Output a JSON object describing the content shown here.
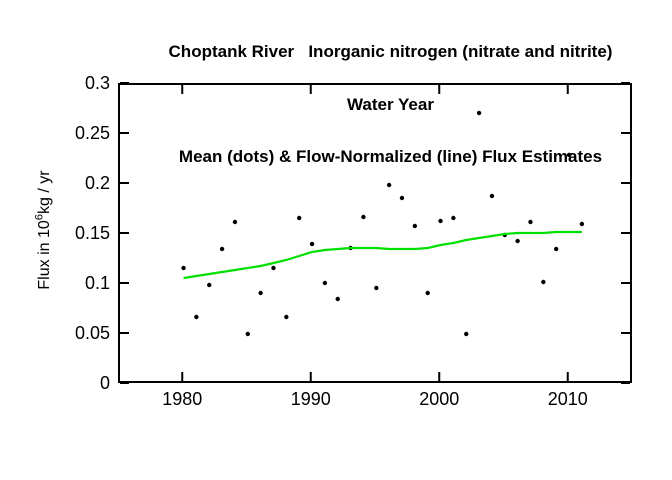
{
  "title": {
    "line1": "Choptank River   Inorganic nitrogen (nitrate and nitrite)",
    "line2": "Water Year",
    "line3": "Mean (dots) & Flow-Normalized (line) Flux Estimates"
  },
  "y_axis_title": {
    "prefix": "Flux in 10",
    "exponent": "6",
    "suffix": "kg / yr"
  },
  "chart_data": {
    "type": "scatter",
    "title": "Choptank River Inorganic nitrogen (nitrate and nitrite), Water Year, Mean (dots) & Flow-Normalized (line) Flux Estimates",
    "xlabel": "",
    "ylabel": "Flux in 10^6 kg/yr",
    "xlim": [
      1975,
      2015
    ],
    "ylim": [
      0,
      0.3
    ],
    "xticks": [
      1980,
      1990,
      2000,
      2010
    ],
    "xtick_labels": [
      "1980",
      "1990",
      "2000",
      "2010"
    ],
    "yticks": [
      0,
      0.05,
      0.1,
      0.15,
      0.2,
      0.25,
      0.3
    ],
    "ytick_labels": [
      "0",
      "0.05",
      "0.1",
      "0.15",
      "0.2",
      "0.25",
      "0.3"
    ],
    "grid": false,
    "legend": "none",
    "colors": {
      "dots": "#000000",
      "line": "#00E000",
      "axis": "#000000"
    },
    "x": [
      1980,
      1981,
      1982,
      1983,
      1984,
      1985,
      1986,
      1987,
      1988,
      1989,
      1990,
      1991,
      1992,
      1993,
      1994,
      1995,
      1996,
      1997,
      1998,
      1999,
      2000,
      2001,
      2002,
      2003,
      2004,
      2005,
      2006,
      2007,
      2008,
      2009,
      2010,
      2011
    ],
    "series": [
      {
        "name": "Mean (dots)",
        "style": "scatter",
        "values": [
          0.115,
          0.066,
          0.098,
          0.134,
          0.161,
          0.049,
          0.09,
          0.115,
          0.066,
          0.165,
          0.139,
          0.1,
          0.084,
          0.135,
          0.166,
          0.095,
          0.198,
          0.185,
          0.157,
          0.09,
          0.162,
          0.165,
          0.049,
          0.27,
          0.187,
          0.148,
          0.142,
          0.161,
          0.101,
          0.134,
          0.228,
          0.159
        ]
      },
      {
        "name": "Flow-Normalized (line)",
        "style": "line",
        "values": [
          0.105,
          0.107,
          0.109,
          0.111,
          0.113,
          0.115,
          0.117,
          0.12,
          0.123,
          0.127,
          0.131,
          0.133,
          0.134,
          0.135,
          0.135,
          0.135,
          0.134,
          0.134,
          0.134,
          0.135,
          0.138,
          0.14,
          0.143,
          0.145,
          0.147,
          0.149,
          0.15,
          0.15,
          0.15,
          0.151,
          0.151,
          0.151
        ]
      }
    ]
  }
}
